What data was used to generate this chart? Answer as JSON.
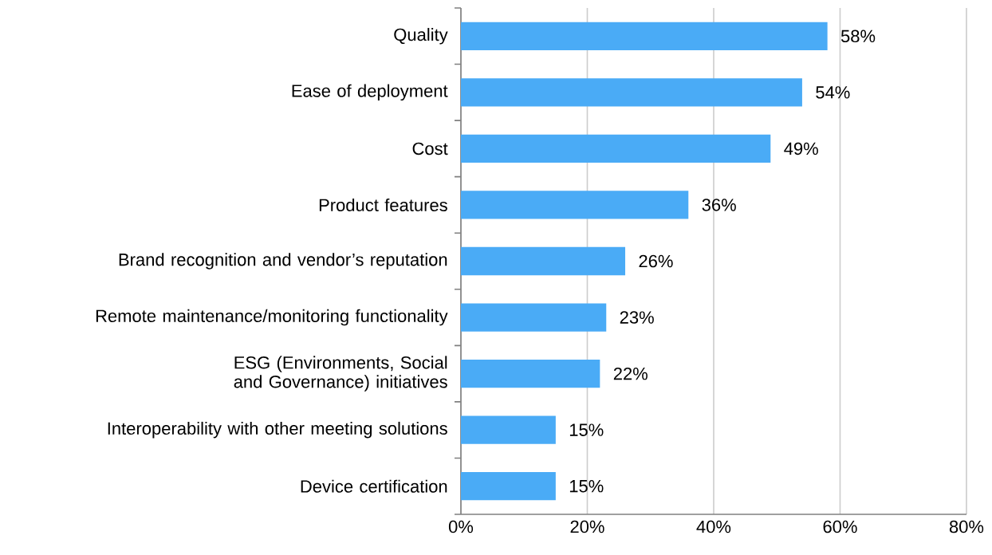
{
  "chart_data": {
    "type": "bar",
    "orientation": "horizontal",
    "categories": [
      "Quality",
      "Ease of deployment",
      "Cost",
      "Product features",
      "Brand recognition and vendor’s reputation",
      "Remote maintenance/monitoring functionality",
      "ESG (Environments, Social and Governance) initiatives",
      "Interoperability with other meeting solutions",
      "Device certification"
    ],
    "values": [
      58,
      54,
      49,
      36,
      26,
      23,
      22,
      15,
      15
    ],
    "value_labels": [
      "58%",
      "54%",
      "49%",
      "36%",
      "26%",
      "23%",
      "22%",
      "15%",
      "15%"
    ],
    "color": "#4aabf6",
    "xlim": [
      0,
      80
    ],
    "xticks": [
      {
        "value": 0,
        "label": "0%"
      },
      {
        "value": 20,
        "label": "20%"
      },
      {
        "value": 40,
        "label": "40%"
      },
      {
        "value": 60,
        "label": "60%"
      },
      {
        "value": 80,
        "label": "80%"
      }
    ],
    "grid": "x"
  }
}
